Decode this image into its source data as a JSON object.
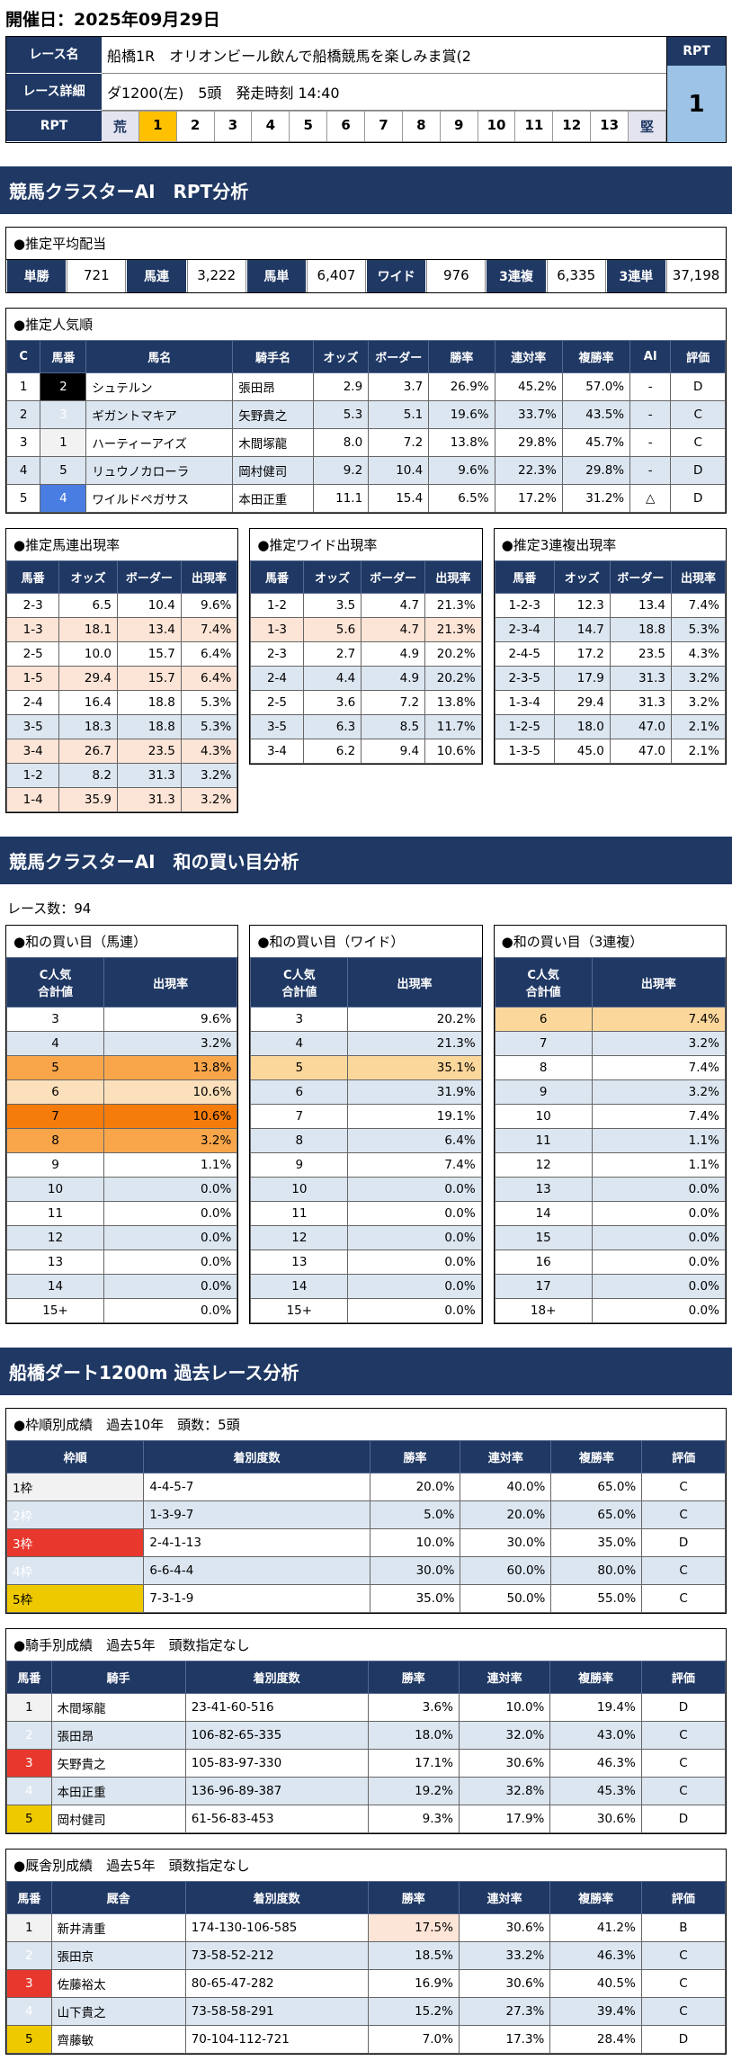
{
  "page": {
    "date_label": "開催日：2025年09月29日"
  },
  "race_info": {
    "name_label": "レース名",
    "name": "船橋1R　オリオンビール飲んで船橋競馬を楽しみま賞(2",
    "detail_label": "レース詳細",
    "detail": "ダ1200(左)　5頭　発走時刻 14:40",
    "rpt_label": "RPT",
    "rpt_scale": [
      "荒",
      "1",
      "2",
      "3",
      "4",
      "5",
      "6",
      "7",
      "8",
      "9",
      "10",
      "11",
      "12",
      "13",
      "堅"
    ],
    "rpt_selected_index": 1,
    "rpt_box_label": "RPT",
    "rpt_value": "1"
  },
  "section_rpt": {
    "title": "競馬クラスターAI　RPT分析"
  },
  "payouts": {
    "title": "●推定平均配当",
    "items": [
      {
        "label": "単勝",
        "value": "721"
      },
      {
        "label": "馬連",
        "value": "3,222"
      },
      {
        "label": "馬単",
        "value": "6,407"
      },
      {
        "label": "ワイド",
        "value": "976"
      },
      {
        "label": "3連複",
        "value": "6,335"
      },
      {
        "label": "3連単",
        "value": "37,198"
      }
    ]
  },
  "popularity": {
    "title": "●推定人気順",
    "headers": [
      "C",
      "馬番",
      "馬名",
      "騎手名",
      "オッズ",
      "ボーダー",
      "勝率",
      "連対率",
      "複勝率",
      "AI",
      "評価"
    ],
    "rows": [
      {
        "c": "1",
        "num": "2",
        "cls_num": "wk-black",
        "name": "シュテルン",
        "jockey": "張田昂",
        "odds": "2.9",
        "border": "3.7",
        "win": "26.9%",
        "ren": "45.2%",
        "fuku": "57.0%",
        "ai": "-",
        "ev": "D",
        "bg": ""
      },
      {
        "c": "2",
        "num": "3",
        "cls_num": "wk-red",
        "name": "ギガントマキア",
        "jockey": "矢野貴之",
        "odds": "5.3",
        "border": "5.1",
        "win": "19.6%",
        "cls_win": "hl-pink",
        "ren": "33.7%",
        "fuku": "43.5%",
        "ai": "-",
        "ev": "C",
        "bg": "bg-blue"
      },
      {
        "c": "3",
        "num": "1",
        "cls_num": "wk-white",
        "name": "ハーティーアイズ",
        "jockey": "木間塚龍",
        "odds": "8.0",
        "border": "7.2",
        "win": "13.8%",
        "ren": "29.8%",
        "fuku": "45.7%",
        "ai": "-",
        "ev": "C",
        "bg": ""
      },
      {
        "c": "4",
        "num": "5",
        "cls_num": "wk-yellow",
        "name": "リュウノカローラ",
        "jockey": "岡村健司",
        "odds": "9.2",
        "border": "10.4",
        "win": "9.6%",
        "ren": "22.3%",
        "fuku": "29.8%",
        "ai": "-",
        "ev": "D",
        "bg": "bg-blue"
      },
      {
        "c": "5",
        "num": "4",
        "cls_num": "wk-blue",
        "name": "ワイルドペガサス",
        "jockey": "本田正重",
        "odds": "11.1",
        "border": "15.4",
        "win": "6.5%",
        "ren": "17.2%",
        "fuku": "31.2%",
        "ai": "△",
        "ev": "D",
        "bg": ""
      }
    ]
  },
  "umaren_rates": {
    "title": "●推定馬連出現率",
    "headers": [
      "馬番",
      "オッズ",
      "ボーダー",
      "出現率"
    ],
    "rows": [
      {
        "pair": "2-3",
        "odds": "6.5",
        "border": "10.4",
        "rate": "9.6%",
        "bg": ""
      },
      {
        "pair": "1-3",
        "odds": "18.1",
        "border": "13.4",
        "rate": "7.4%",
        "bg": "bg-pink"
      },
      {
        "pair": "2-5",
        "odds": "10.0",
        "border": "15.7",
        "rate": "6.4%",
        "bg": ""
      },
      {
        "pair": "1-5",
        "odds": "29.4",
        "border": "15.7",
        "rate": "6.4%",
        "bg": "bg-pink"
      },
      {
        "pair": "2-4",
        "odds": "16.4",
        "border": "18.8",
        "rate": "5.3%",
        "bg": ""
      },
      {
        "pair": "3-5",
        "odds": "18.3",
        "border": "18.8",
        "rate": "5.3%",
        "bg": "bg-blue"
      },
      {
        "pair": "3-4",
        "odds": "26.7",
        "border": "23.5",
        "rate": "4.3%",
        "bg": "bg-pink"
      },
      {
        "pair": "1-2",
        "odds": "8.2",
        "border": "31.3",
        "rate": "3.2%",
        "bg": "bg-blue"
      },
      {
        "pair": "1-4",
        "odds": "35.9",
        "border": "31.3",
        "rate": "3.2%",
        "bg": "bg-pink"
      }
    ]
  },
  "wide_rates": {
    "title": "●推定ワイド出現率",
    "headers": [
      "馬番",
      "オッズ",
      "ボーダー",
      "出現率"
    ],
    "rows": [
      {
        "pair": "1-2",
        "odds": "3.5",
        "border": "4.7",
        "rate": "21.3%",
        "bg": ""
      },
      {
        "pair": "1-3",
        "odds": "5.6",
        "border": "4.7",
        "rate": "21.3%",
        "bg": "bg-pink"
      },
      {
        "pair": "2-3",
        "odds": "2.7",
        "border": "4.9",
        "rate": "20.2%",
        "bg": ""
      },
      {
        "pair": "2-4",
        "odds": "4.4",
        "border": "4.9",
        "rate": "20.2%",
        "bg": "bg-blue"
      },
      {
        "pair": "2-5",
        "odds": "3.6",
        "border": "7.2",
        "rate": "13.8%",
        "bg": ""
      },
      {
        "pair": "3-5",
        "odds": "6.3",
        "border": "8.5",
        "rate": "11.7%",
        "bg": "bg-blue"
      },
      {
        "pair": "3-4",
        "odds": "6.2",
        "border": "9.4",
        "rate": "10.6%",
        "bg": ""
      }
    ]
  },
  "sanren_rates": {
    "title": "●推定3連複出現率",
    "headers": [
      "馬番",
      "オッズ",
      "ボーダー",
      "出現率"
    ],
    "rows": [
      {
        "pair": "1-2-3",
        "odds": "12.3",
        "border": "13.4",
        "rate": "7.4%",
        "bg": ""
      },
      {
        "pair": "2-3-4",
        "odds": "14.7",
        "border": "18.8",
        "rate": "5.3%",
        "bg": "bg-blue"
      },
      {
        "pair": "2-4-5",
        "odds": "17.2",
        "border": "23.5",
        "rate": "4.3%",
        "bg": ""
      },
      {
        "pair": "2-3-5",
        "odds": "17.9",
        "border": "31.3",
        "rate": "3.2%",
        "bg": "bg-blue"
      },
      {
        "pair": "1-3-4",
        "odds": "29.4",
        "border": "31.3",
        "rate": "3.2%",
        "bg": ""
      },
      {
        "pair": "1-2-5",
        "odds": "18.0",
        "border": "47.0",
        "rate": "2.1%",
        "bg": "bg-blue"
      },
      {
        "pair": "1-3-5",
        "odds": "45.0",
        "border": "47.0",
        "rate": "2.1%",
        "bg": ""
      }
    ]
  },
  "section_wa": {
    "title": "競馬クラスターAI　和の買い目分析",
    "race_count": "レース数：94"
  },
  "wa_umaren": {
    "title": "●和の買い目（馬連）",
    "headers": [
      "C人気\n合計値",
      "出現率"
    ],
    "rows": [
      {
        "v": "3",
        "r": "9.6%",
        "bg": ""
      },
      {
        "v": "4",
        "r": "3.2%",
        "bg": "bg-blue"
      },
      {
        "v": "5",
        "r": "13.8%",
        "bg": "bg-or2"
      },
      {
        "v": "6",
        "r": "10.6%",
        "bg": "bg-or3"
      },
      {
        "v": "7",
        "r": "10.6%",
        "bg": "bg-or1"
      },
      {
        "v": "8",
        "r": "3.2%",
        "bg": "bg-or2"
      },
      {
        "v": "9",
        "r": "1.1%",
        "bg": ""
      },
      {
        "v": "10",
        "r": "0.0%",
        "bg": "bg-blue"
      },
      {
        "v": "11",
        "r": "0.0%",
        "bg": ""
      },
      {
        "v": "12",
        "r": "0.0%",
        "bg": "bg-blue"
      },
      {
        "v": "13",
        "r": "0.0%",
        "bg": ""
      },
      {
        "v": "14",
        "r": "0.0%",
        "bg": "bg-blue"
      },
      {
        "v": "15+",
        "r": "0.0%",
        "bg": ""
      }
    ]
  },
  "wa_wide": {
    "title": "●和の買い目（ワイド）",
    "headers": [
      "C人気\n合計値",
      "出現率"
    ],
    "rows": [
      {
        "v": "3",
        "r": "20.2%",
        "bg": ""
      },
      {
        "v": "4",
        "r": "21.3%",
        "bg": "bg-blue"
      },
      {
        "v": "5",
        "r": "35.1%",
        "bg": "bg-or4"
      },
      {
        "v": "6",
        "r": "31.9%",
        "bg": "bg-blue"
      },
      {
        "v": "7",
        "r": "19.1%",
        "bg": ""
      },
      {
        "v": "8",
        "r": "6.4%",
        "bg": "bg-blue"
      },
      {
        "v": "9",
        "r": "7.4%",
        "bg": ""
      },
      {
        "v": "10",
        "r": "0.0%",
        "bg": "bg-blue"
      },
      {
        "v": "11",
        "r": "0.0%",
        "bg": ""
      },
      {
        "v": "12",
        "r": "0.0%",
        "bg": "bg-blue"
      },
      {
        "v": "13",
        "r": "0.0%",
        "bg": ""
      },
      {
        "v": "14",
        "r": "0.0%",
        "bg": "bg-blue"
      },
      {
        "v": "15+",
        "r": "0.0%",
        "bg": ""
      }
    ]
  },
  "wa_sanren": {
    "title": "●和の買い目（3連複）",
    "headers": [
      "C人気\n合計値",
      "出現率"
    ],
    "rows": [
      {
        "v": "6",
        "r": "7.4%",
        "bg": "bg-or4"
      },
      {
        "v": "7",
        "r": "3.2%",
        "bg": "bg-blue"
      },
      {
        "v": "8",
        "r": "7.4%",
        "bg": ""
      },
      {
        "v": "9",
        "r": "3.2%",
        "bg": "bg-blue"
      },
      {
        "v": "10",
        "r": "7.4%",
        "bg": ""
      },
      {
        "v": "11",
        "r": "1.1%",
        "bg": "bg-blue"
      },
      {
        "v": "12",
        "r": "1.1%",
        "bg": ""
      },
      {
        "v": "13",
        "r": "0.0%",
        "bg": "bg-blue"
      },
      {
        "v": "14",
        "r": "0.0%",
        "bg": ""
      },
      {
        "v": "15",
        "r": "0.0%",
        "bg": "bg-blue"
      },
      {
        "v": "16",
        "r": "0.0%",
        "bg": ""
      },
      {
        "v": "17",
        "r": "0.0%",
        "bg": "bg-blue"
      },
      {
        "v": "18+",
        "r": "0.0%",
        "bg": ""
      }
    ]
  },
  "section_past": {
    "title": "船橋ダート1200m 過去レース分析"
  },
  "waku_results": {
    "title": "●枠順別成績　過去10年　頭数：5頭",
    "headers": [
      "枠順",
      "着別度数",
      "勝率",
      "連対率",
      "複勝率",
      "評価"
    ],
    "rows": [
      {
        "waku": "1枠",
        "cls_waku": "wk-white",
        "kaku": "4-4-5-7",
        "win": "20.0%",
        "ren": "40.0%",
        "fuku": "65.0%",
        "ev": "C",
        "bg": ""
      },
      {
        "waku": "2枠",
        "cls_waku": "wk-black",
        "kaku": "1-3-9-7",
        "win": "5.0%",
        "ren": "20.0%",
        "fuku": "65.0%",
        "ev": "C",
        "bg": "bg-blue"
      },
      {
        "waku": "3枠",
        "cls_waku": "wk-red",
        "kaku": "2-4-1-13",
        "win": "10.0%",
        "ren": "30.0%",
        "fuku": "35.0%",
        "ev": "D",
        "bg": ""
      },
      {
        "waku": "4枠",
        "cls_waku": "wk-blue",
        "kaku": "6-6-4-4",
        "win": "30.0%",
        "ren": "60.0%",
        "fuku": "80.0%",
        "ev": "C",
        "bg": "bg-blue"
      },
      {
        "waku": "5枠",
        "cls_waku": "wk-yellow",
        "kaku": "7-3-1-9",
        "win": "35.0%",
        "ren": "50.0%",
        "fuku": "55.0%",
        "ev": "C",
        "bg": ""
      }
    ]
  },
  "jockey_results": {
    "title": "●騎手別成績　過去5年　頭数指定なし",
    "headers": [
      "馬番",
      "騎手",
      "着別度数",
      "勝率",
      "連対率",
      "複勝率",
      "評価"
    ],
    "rows": [
      {
        "num": "1",
        "cls_num": "wk-white",
        "name": "木間塚龍",
        "kaku": "23-41-60-516",
        "win": "3.6%",
        "ren": "10.0%",
        "fuku": "19.4%",
        "ev": "D",
        "bg": ""
      },
      {
        "num": "2",
        "cls_num": "wk-black",
        "name": "張田昂",
        "kaku": "106-82-65-335",
        "win": "18.0%",
        "ren": "32.0%",
        "fuku": "43.0%",
        "ev": "C",
        "bg": "bg-blue"
      },
      {
        "num": "3",
        "cls_num": "wk-red",
        "name": "矢野貴之",
        "kaku": "105-83-97-330",
        "win": "17.1%",
        "ren": "30.6%",
        "fuku": "46.3%",
        "ev": "C",
        "bg": ""
      },
      {
        "num": "4",
        "cls_num": "wk-blue",
        "name": "本田正重",
        "kaku": "136-96-89-387",
        "win": "19.2%",
        "ren": "32.8%",
        "fuku": "45.3%",
        "ev": "C",
        "bg": "bg-blue"
      },
      {
        "num": "5",
        "cls_num": "wk-yellow",
        "name": "岡村健司",
        "kaku": "61-56-83-453",
        "win": "9.3%",
        "ren": "17.9%",
        "fuku": "30.6%",
        "ev": "D",
        "bg": ""
      }
    ]
  },
  "stable_results": {
    "title": "●厩舎別成績　過去5年　頭数指定なし",
    "headers": [
      "馬番",
      "厩舎",
      "着別度数",
      "勝率",
      "連対率",
      "複勝率",
      "評価"
    ],
    "rows": [
      {
        "num": "1",
        "cls_num": "wk-white",
        "name": "新井清重",
        "kaku": "174-130-106-585",
        "win": "17.5%",
        "cls_win": "hl-pink",
        "ren": "30.6%",
        "fuku": "41.2%",
        "ev": "B",
        "bg": ""
      },
      {
        "num": "2",
        "cls_num": "wk-black",
        "name": "張田京",
        "kaku": "73-58-52-212",
        "win": "18.5%",
        "ren": "33.2%",
        "fuku": "46.3%",
        "ev": "C",
        "bg": "bg-blue"
      },
      {
        "num": "3",
        "cls_num": "wk-red",
        "name": "佐藤裕太",
        "kaku": "80-65-47-282",
        "win": "16.9%",
        "ren": "30.6%",
        "fuku": "40.5%",
        "ev": "C",
        "bg": ""
      },
      {
        "num": "4",
        "cls_num": "wk-blue",
        "name": "山下貴之",
        "kaku": "73-58-58-291",
        "win": "15.2%",
        "cls_win": "hl-pink",
        "ren": "27.3%",
        "fuku": "39.4%",
        "ev": "C",
        "bg": "bg-blue"
      },
      {
        "num": "5",
        "cls_num": "wk-yellow",
        "name": "齊藤敏",
        "kaku": "70-104-112-721",
        "win": "7.0%",
        "ren": "17.3%",
        "fuku": "28.4%",
        "ev": "D",
        "bg": ""
      }
    ]
  }
}
